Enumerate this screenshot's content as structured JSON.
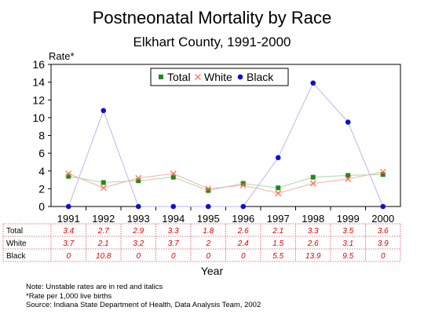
{
  "title": "Postneonatal Mortality by Race",
  "subtitle": "Elkhart County, 1991-2000",
  "chart_data": {
    "type": "line",
    "ylabel": "Rate*",
    "xlabel": "Year",
    "ylim": [
      0,
      16
    ],
    "yticks": [
      0,
      2,
      4,
      6,
      8,
      10,
      12,
      14,
      16
    ],
    "categories": [
      "1991",
      "1992",
      "1993",
      "1994",
      "1995",
      "1996",
      "1997",
      "1998",
      "1999",
      "2000"
    ],
    "legend_position": "top-center",
    "series": [
      {
        "name": "Total",
        "color": "#1f8a1f",
        "marker": "square",
        "values": [
          3.4,
          2.7,
          2.9,
          3.3,
          1.8,
          2.6,
          2.1,
          3.3,
          3.5,
          3.6
        ],
        "labels": [
          "3.4",
          "2.7",
          "2.9",
          "3.3",
          "1.8",
          "2.6",
          "2.1",
          "3.3",
          "3.5",
          "3.6"
        ]
      },
      {
        "name": "White",
        "color": "#ff6a4d",
        "marker": "x",
        "values": [
          3.7,
          2.1,
          3.2,
          3.7,
          2,
          2.4,
          1.5,
          2.6,
          3.1,
          3.9
        ],
        "labels": [
          "3.7",
          "2.1",
          "3.2",
          "3.7",
          "2",
          "2.4",
          "1.5",
          "2.6",
          "3.1",
          "3.9"
        ]
      },
      {
        "name": "Black",
        "color": "#1010d0",
        "marker": "circle",
        "values": [
          0,
          10.8,
          0,
          0,
          0,
          0,
          5.5,
          13.9,
          9.5,
          0
        ],
        "labels": [
          "0",
          "10.8",
          "0",
          "0",
          "0",
          "0",
          "5.5",
          "13.9",
          "9.5",
          "0"
        ]
      }
    ]
  },
  "notes": [
    "Note:  Unstable rates are in red and italics",
    "*Rate per 1,000 live births",
    "Source:  Indiana State Department of Health, Data Analysis Team, 2002"
  ],
  "colors": {
    "unstable_text": "#e00000",
    "line_total": "#a8d8a8",
    "line_white": "#f4b0a0",
    "line_black": "#b8b8f0"
  }
}
